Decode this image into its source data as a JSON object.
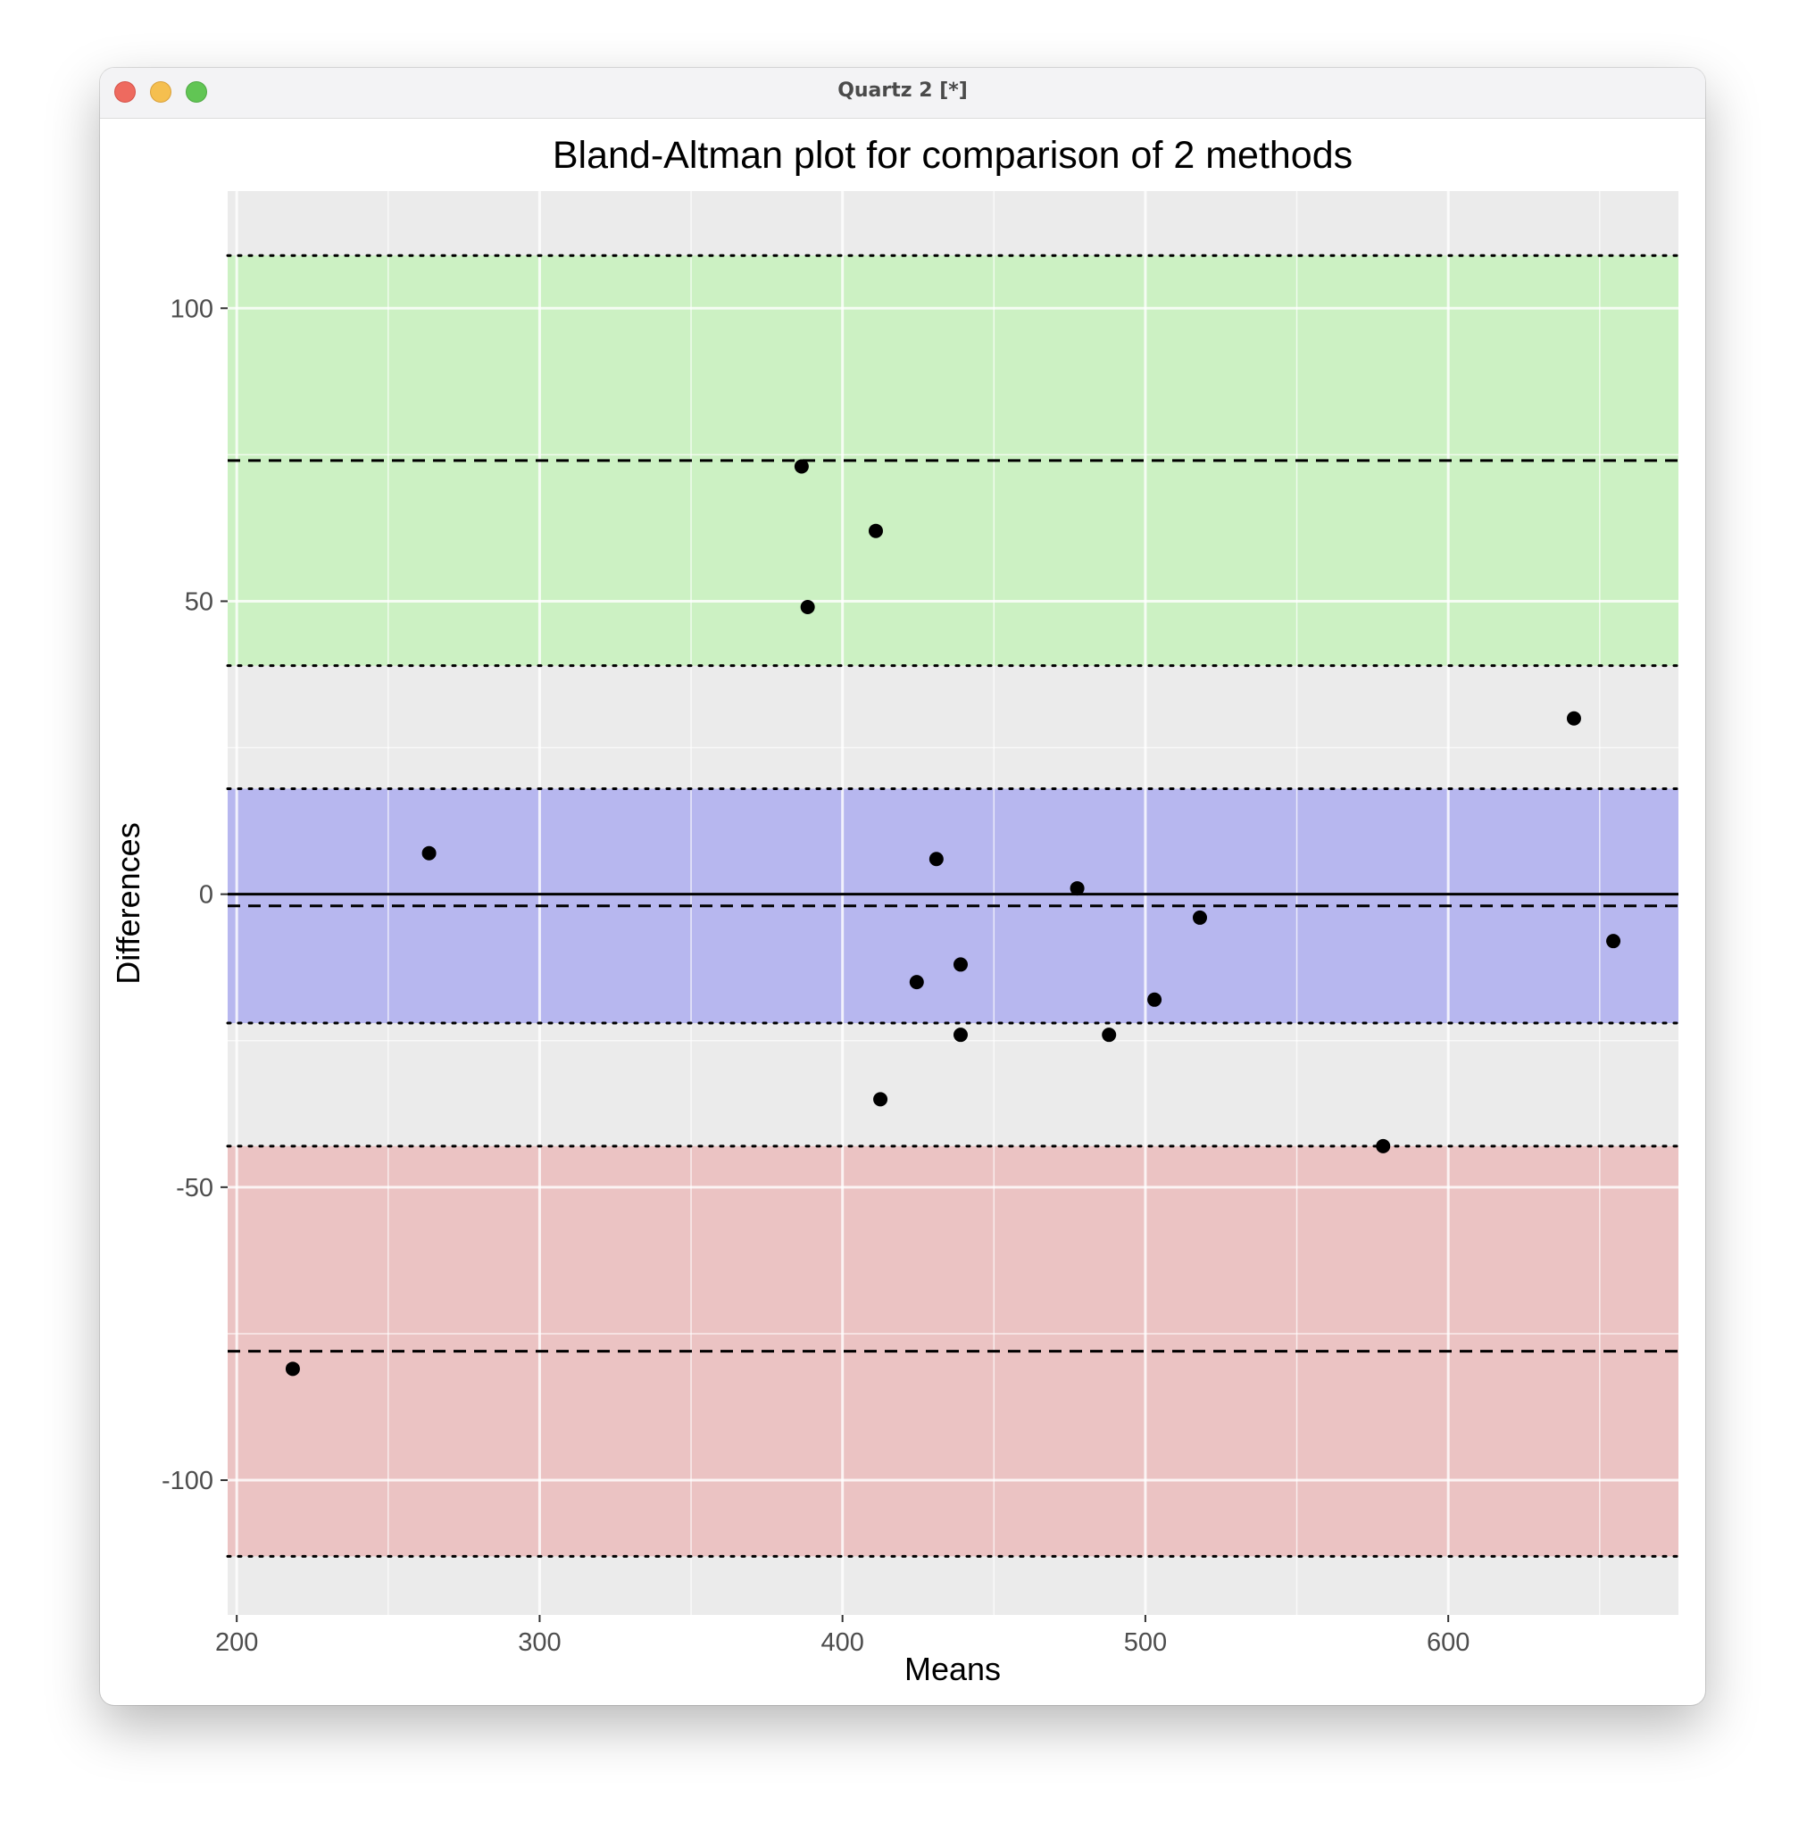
{
  "window": {
    "title": "Quartz 2 [*]",
    "buttons": [
      "close",
      "minimize",
      "zoom"
    ]
  },
  "chart_data": {
    "type": "scatter",
    "title": "Bland-Altman plot for comparison of 2 methods",
    "xlabel": "Means",
    "ylabel": "Differences",
    "xlim": [
      197,
      676
    ],
    "ylim": [
      -123,
      120
    ],
    "x_ticks": [
      200,
      300,
      400,
      500,
      600
    ],
    "y_ticks": [
      -100,
      -50,
      0,
      50,
      100
    ],
    "x_tick_labels": [
      "200",
      "300",
      "400",
      "500",
      "600"
    ],
    "y_tick_labels": [
      "-100",
      "-50",
      "0",
      "50",
      "100"
    ],
    "grid": true,
    "background_color": "#ebebeb",
    "points": [
      {
        "x": 218.5,
        "y": -81
      },
      {
        "x": 263.5,
        "y": 7
      },
      {
        "x": 386.5,
        "y": 73
      },
      {
        "x": 388.5,
        "y": 49
      },
      {
        "x": 411,
        "y": 62
      },
      {
        "x": 412.5,
        "y": -35
      },
      {
        "x": 424.5,
        "y": -15
      },
      {
        "x": 431,
        "y": 6
      },
      {
        "x": 439,
        "y": -12
      },
      {
        "x": 439,
        "y": -24
      },
      {
        "x": 477.5,
        "y": 1
      },
      {
        "x": 488,
        "y": -24
      },
      {
        "x": 503,
        "y": -18
      },
      {
        "x": 518,
        "y": -4
      },
      {
        "x": 578.5,
        "y": -43
      },
      {
        "x": 641.5,
        "y": 30
      },
      {
        "x": 654.5,
        "y": -8
      }
    ],
    "point_color": "#000000",
    "bands": [
      {
        "name": "upper limit of agreement CI",
        "ymin": 39,
        "ymax": 109,
        "color": "#b3f5a3"
      },
      {
        "name": "mean difference CI",
        "ymin": -22,
        "ymax": 18,
        "color": "#8d8df2"
      },
      {
        "name": "lower limit of agreement CI",
        "ymin": -113,
        "ymax": -43,
        "color": "#eba3a3"
      }
    ],
    "lines": [
      {
        "y": 0,
        "style": "solid"
      },
      {
        "y": -2,
        "style": "dashed"
      },
      {
        "y": 74,
        "style": "dashed"
      },
      {
        "y": -78,
        "style": "dashed"
      },
      {
        "y": 109,
        "style": "dotted"
      },
      {
        "y": 39,
        "style": "dotted"
      },
      {
        "y": 18,
        "style": "dotted"
      },
      {
        "y": -22,
        "style": "dotted"
      },
      {
        "y": -43,
        "style": "dotted"
      },
      {
        "y": -113,
        "style": "dotted"
      }
    ]
  }
}
